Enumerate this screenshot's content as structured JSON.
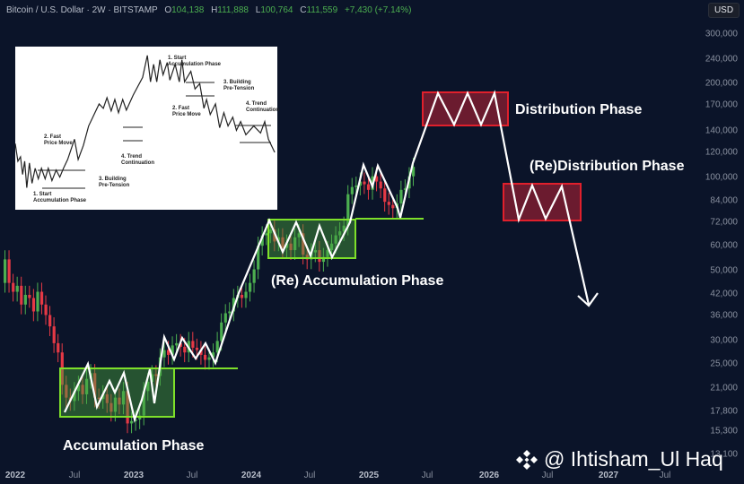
{
  "header": {
    "symbol": "Bitcoin / U.S. Dollar · 2W · BITSTAMP",
    "open_label": "O",
    "open": "104,138",
    "high_label": "H",
    "high": "111,888",
    "low_label": "L",
    "low": "100,764",
    "close_label": "C",
    "close": "111,559",
    "change": "+7,430 (+7.14%)"
  },
  "currency_button": "USD",
  "colors": {
    "background": "#0b1429",
    "up_candle": "#4caf50",
    "down_candle": "#e53945",
    "accumulation_box": "#7ee02a",
    "distribution_box": "#e0202c",
    "path_line": "#ffffff"
  },
  "y_axis": [
    "300,000",
    "240,000",
    "200,000",
    "170,000",
    "140,000",
    "120,000",
    "100,000",
    "84,000",
    "72,000",
    "60,000",
    "50,000",
    "42,000",
    "36,000",
    "30,000",
    "25,000",
    "21,000",
    "17,800",
    "15,300",
    "13,100"
  ],
  "x_axis": [
    {
      "label": "2022",
      "year": true
    },
    {
      "label": "Jul",
      "year": false
    },
    {
      "label": "2023",
      "year": true
    },
    {
      "label": "Jul",
      "year": false
    },
    {
      "label": "2024",
      "year": true
    },
    {
      "label": "Jul",
      "year": false
    },
    {
      "label": "2025",
      "year": true
    },
    {
      "label": "Jul",
      "year": false
    },
    {
      "label": "2026",
      "year": true
    },
    {
      "label": "Jul",
      "year": false
    },
    {
      "label": "2027",
      "year": true
    },
    {
      "label": "Jul",
      "year": false
    }
  ],
  "annotations": {
    "accumulation": "Accumulation Phase",
    "re_accumulation": "(Re) Accumulation Phase",
    "distribution": "Distribution Phase",
    "re_distribution": "(Re)Distribution Phase"
  },
  "inset": {
    "labels": [
      "1. Start\nAccumulation Phase",
      "2. Fast\nPrice Move",
      "3. Building\nPre-Tension",
      "4. Trend\nContinuation",
      "1. Start\nAccumulation Phase",
      "2. Fast\nPrice Move",
      "3. Building\nPre-Tension",
      "4. Trend\nContinuation"
    ]
  },
  "watermark": "@ Ihtisham_Ul Haq",
  "chart_data": {
    "type": "candlestick",
    "title": "Bitcoin / U.S. Dollar · 2W · BITSTAMP",
    "xlabel": "",
    "ylabel": "USD (log scale)",
    "x_ticks": [
      "2022",
      "Jul",
      "2023",
      "Jul",
      "2024",
      "Jul",
      "2025",
      "Jul",
      "2026",
      "Jul",
      "2027",
      "Jul"
    ],
    "y_ticks": [
      300000,
      240000,
      200000,
      170000,
      140000,
      120000,
      100000,
      84000,
      72000,
      60000,
      50000,
      42000,
      36000,
      30000,
      25000,
      21000,
      17800,
      15300,
      13100
    ],
    "ylim": [
      12500,
      320000
    ],
    "last_bar": {
      "open": 104138,
      "high": 111888,
      "low": 100764,
      "close": 111559,
      "change": 7430,
      "change_pct": 7.14
    },
    "zones": [
      {
        "name": "Accumulation Phase",
        "type": "accumulation",
        "x_range": [
          "2022-Jun",
          "2023-May"
        ],
        "price_range": [
          17800,
          24500
        ]
      },
      {
        "name": "(Re) Accumulation Phase",
        "type": "accumulation",
        "x_range": [
          "2024-Mar",
          "2024-Oct"
        ],
        "price_range": [
          56000,
          73500
        ]
      },
      {
        "name": "Distribution Phase",
        "type": "distribution",
        "x_range": [
          "2025-Jul",
          "2026-Jan"
        ],
        "price_range": [
          150000,
          195000
        ]
      },
      {
        "name": "(Re)Distribution Phase",
        "type": "distribution",
        "x_range": [
          "2026-Jan",
          "2026-May"
        ],
        "price_range": [
          75000,
          96000
        ]
      }
    ],
    "support_lines": [
      {
        "price": 24500,
        "x_range": [
          "2023-Feb",
          "2023-Nov"
        ]
      },
      {
        "price": 73500,
        "x_range": [
          "2024-Oct",
          "2025-Jun"
        ]
      }
    ],
    "projection_path": [
      {
        "t": "2025-Apr",
        "price": 74000
      },
      {
        "t": "2025-Aug",
        "price": 195000
      },
      {
        "t": "2025-Sep",
        "price": 152000
      },
      {
        "t": "2025-Oct",
        "price": 195000
      },
      {
        "t": "2025-Nov",
        "price": 152000
      },
      {
        "t": "2025-Dec",
        "price": 195000
      },
      {
        "t": "2026-Feb",
        "price": 76000
      },
      {
        "t": "2026-Mar",
        "price": 96000
      },
      {
        "t": "2026-Apr",
        "price": 76000
      },
      {
        "t": "2026-May",
        "price": 94000
      },
      {
        "t": "2026-Aug",
        "price": 41000
      }
    ],
    "legend": []
  }
}
